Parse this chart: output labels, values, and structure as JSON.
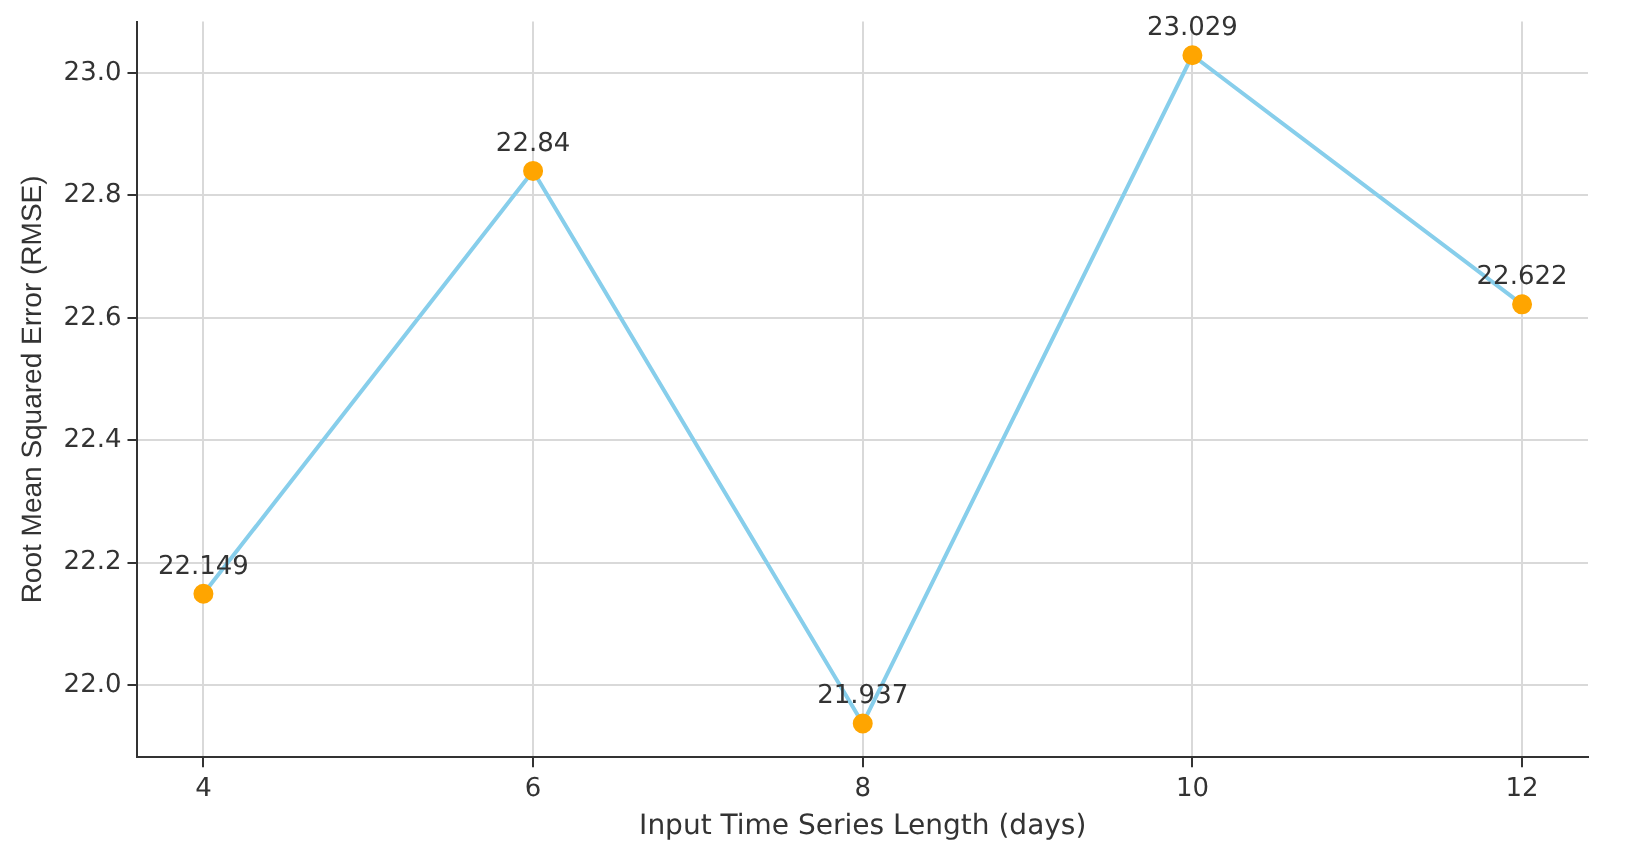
{
  "chart_data": {
    "type": "line",
    "xlabel": "Input Time Series Length (days)",
    "ylabel": "Root Mean Squared Error (RMSE)",
    "x": [
      4,
      6,
      8,
      10,
      12
    ],
    "series": [
      {
        "color": "#87ceeb",
        "colors": [
          "#ffa500",
          "#ffa500",
          "#ffa500",
          "#ffa500",
          "#ffa500"
        ],
        "values": [
          22.149,
          22.84,
          21.937,
          23.029,
          22.622
        ]
      }
    ],
    "xlim": [
      3.6,
      12.4
    ],
    "xticks": [
      4,
      6,
      8,
      10,
      12
    ],
    "ylim": [
      21.882,
      23.084
    ],
    "yticks": [
      {
        "value": 22,
        "label": "22.0"
      },
      {
        "value": 22.2,
        "label": "22.2"
      },
      {
        "value": 22.4,
        "label": "22.4"
      },
      {
        "value": 22.6,
        "label": "22.6"
      },
      {
        "value": 22.8,
        "label": "22.8"
      },
      {
        "value": 23,
        "label": "23.0"
      }
    ],
    "grid": true,
    "marker": "circle",
    "line_style": "solid",
    "data_labels": true,
    "legend": false
  }
}
